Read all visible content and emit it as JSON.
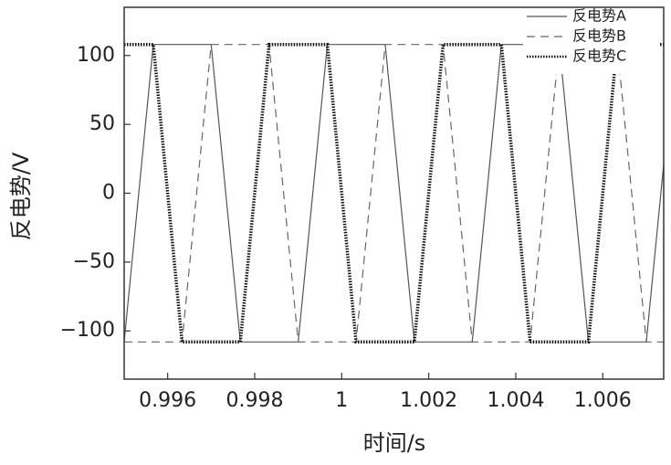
{
  "chart_data": {
    "type": "line",
    "x_label": "时间/s",
    "y_label": "反电势/V",
    "xlim": [
      0.995,
      1.0074
    ],
    "ylim": [
      -135,
      135
    ],
    "xticks": [
      0.996,
      0.998,
      1,
      1.002,
      1.004,
      1.006
    ],
    "yticks": [
      {
        "value": -100,
        "label": "−100"
      },
      {
        "value": -50,
        "label": "−50"
      },
      0,
      50,
      100
    ],
    "grid": false,
    "legend_position": "upper right",
    "series": [
      {
        "name": "反电势A",
        "color": "#555555",
        "line_style": "solid",
        "line_width": 1.2,
        "x": [
          0.995,
          0.99567,
          0.997,
          0.99767,
          0.999,
          0.99967,
          1.001,
          1.00167,
          1.003,
          1.00367,
          1.005,
          1.00567,
          1.007,
          1.0074
        ],
        "values": [
          -108,
          108,
          108,
          -108,
          -108,
          108,
          108,
          -108,
          -108,
          108,
          108,
          -108,
          -108,
          21
        ]
      },
      {
        "name": "反电势B",
        "color": "#666666",
        "line_style": "dashed",
        "line_width": 1.2,
        "x": [
          0.995,
          0.99633,
          0.997,
          0.99833,
          0.999,
          1.00033,
          1.001,
          1.00233,
          1.003,
          1.00433,
          1.005,
          1.00633,
          1.007,
          1.0074
        ],
        "values": [
          -108,
          -108,
          108,
          108,
          -108,
          -108,
          108,
          108,
          -108,
          -108,
          108,
          108,
          -108,
          -108
        ]
      },
      {
        "name": "反电势C",
        "color": "#111111",
        "line_style": "dotted",
        "line_width": 3.5,
        "x": [
          0.995,
          0.99567,
          0.99633,
          0.99767,
          0.99833,
          0.99967,
          1.00033,
          1.00167,
          1.00233,
          1.00367,
          1.00433,
          1.00567,
          1.00633,
          1.0074
        ],
        "values": [
          108,
          108,
          -108,
          -108,
          108,
          108,
          -108,
          -108,
          108,
          108,
          -108,
          -108,
          108,
          108
        ]
      }
    ]
  }
}
